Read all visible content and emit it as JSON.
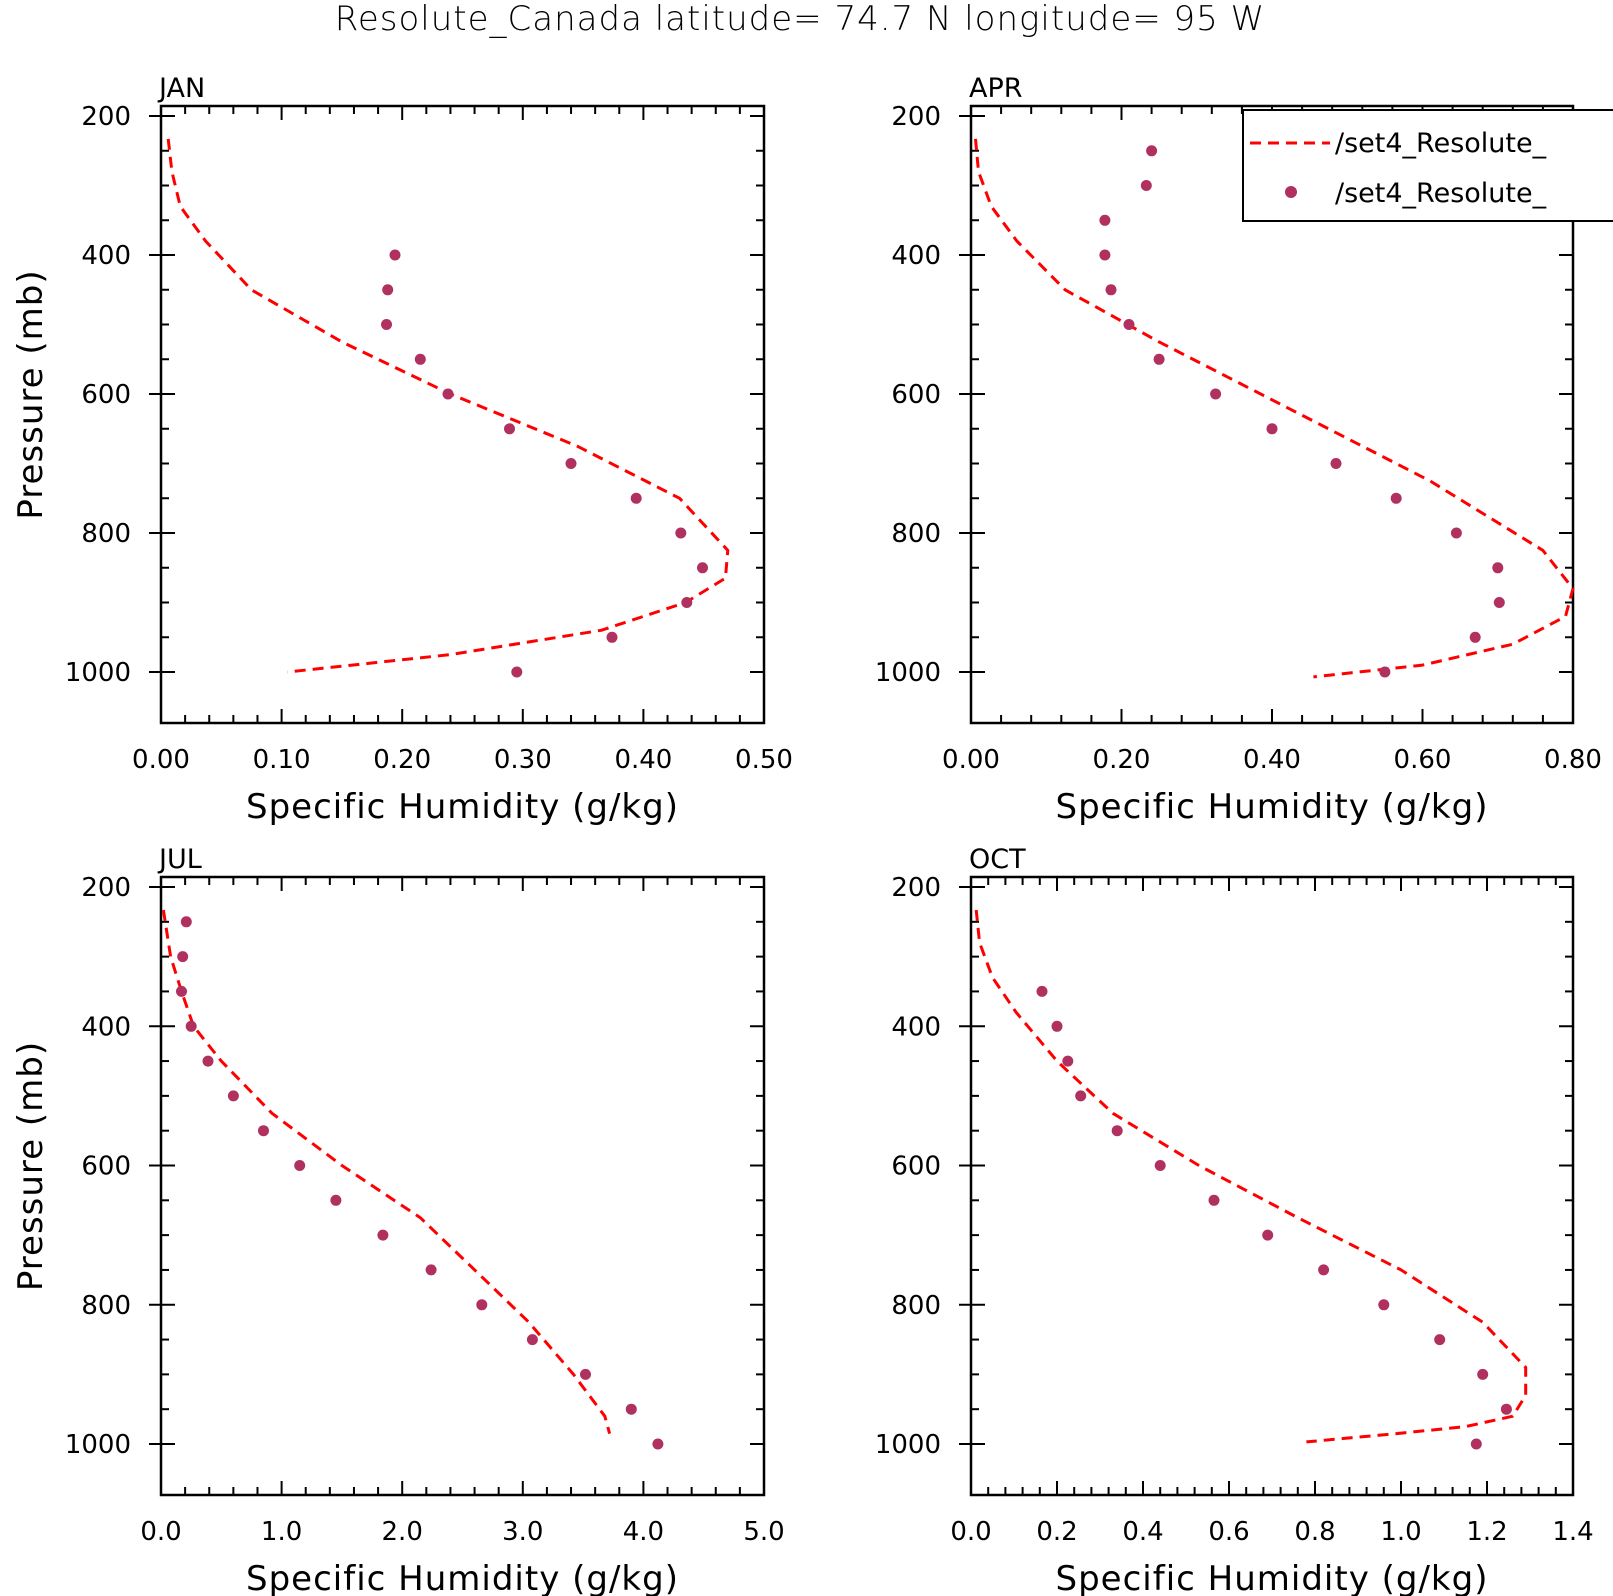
{
  "title": "Resolute_Canada  latitude= 74.7 N longitude= 95 W",
  "legend": {
    "entries": [
      {
        "label": "/set4_Resolute_",
        "style": "dashed-line",
        "color": "#ff0000"
      },
      {
        "label": "/set4_Resolute_",
        "style": "marker",
        "color": "#b03060"
      }
    ]
  },
  "colors": {
    "model_line": "#ff0000",
    "obs_marker": "#b03060"
  },
  "chart_data": [
    {
      "type": "line",
      "panel_label": "JAN",
      "xlabel": "Specific Humidity (g/kg)",
      "ylabel": "Pressure (mb)",
      "xlim": [
        0,
        0.5
      ],
      "ylim": [
        200,
        1000
      ],
      "y_inverted": true,
      "xticks": [
        "0.00",
        "0.10",
        "0.20",
        "0.30",
        "0.40",
        "0.50"
      ],
      "xtick_values": [
        0,
        0.1,
        0.2,
        0.3,
        0.4,
        0.5
      ],
      "yticks": [
        "200",
        "400",
        "600",
        "800",
        "1000"
      ],
      "ytick_values": [
        200,
        400,
        600,
        800,
        1000
      ],
      "series": [
        {
          "style": "dashed-line",
          "x": [
            0.006,
            0.009,
            0.016,
            0.037,
            0.075,
            0.15,
            0.24,
            0.345,
            0.43,
            0.47,
            0.468,
            0.435,
            0.365,
            0.24,
            0.105
          ],
          "y": [
            233,
            280,
            330,
            380,
            450,
            525,
            600,
            675,
            750,
            825,
            865,
            900,
            940,
            975,
            1000
          ]
        },
        {
          "style": "marker",
          "x": [
            0.194,
            0.188,
            0.187,
            0.215,
            0.238,
            0.289,
            0.34,
            0.394,
            0.431,
            0.449,
            0.436,
            0.374,
            0.295
          ],
          "y": [
            400,
            450,
            500,
            550,
            600,
            650,
            700,
            750,
            800,
            850,
            900,
            950,
            1000
          ]
        }
      ]
    },
    {
      "type": "line",
      "panel_label": "APR",
      "xlabel": "Specific Humidity (g/kg)",
      "ylabel": "",
      "xlim": [
        0,
        0.8
      ],
      "ylim": [
        200,
        1000
      ],
      "y_inverted": true,
      "xticks": [
        "0.00",
        "0.20",
        "0.40",
        "0.60",
        "0.80"
      ],
      "xtick_values": [
        0,
        0.2,
        0.4,
        0.6,
        0.8
      ],
      "yticks": [
        "200",
        "400",
        "600",
        "800",
        "1000"
      ],
      "ytick_values": [
        200,
        400,
        600,
        800,
        1000
      ],
      "series": [
        {
          "style": "dashed-line",
          "x": [
            0.006,
            0.01,
            0.027,
            0.061,
            0.125,
            0.25,
            0.43,
            0.61,
            0.76,
            0.8,
            0.79,
            0.72,
            0.6,
            0.455
          ],
          "y": [
            233,
            280,
            330,
            380,
            450,
            525,
            625,
            725,
            825,
            880,
            920,
            960,
            990,
            1007
          ]
        },
        {
          "style": "marker",
          "x": [
            0.24,
            0.233,
            0.178,
            0.178,
            0.186,
            0.21,
            0.25,
            0.325,
            0.4,
            0.485,
            0.565,
            0.645,
            0.7,
            0.702,
            0.67,
            0.55
          ],
          "y": [
            250,
            300,
            350,
            400,
            450,
            500,
            550,
            600,
            650,
            700,
            750,
            800,
            850,
            900,
            950,
            1000
          ]
        }
      ]
    },
    {
      "type": "line",
      "panel_label": "JUL",
      "xlabel": "Specific Humidity (g/kg)",
      "ylabel": "Pressure (mb)",
      "xlim": [
        0,
        5.0
      ],
      "ylim": [
        200,
        1000
      ],
      "y_inverted": true,
      "xticks": [
        "0.0",
        "1.0",
        "2.0",
        "3.0",
        "4.0",
        "5.0"
      ],
      "xtick_values": [
        0,
        1,
        2,
        3,
        4,
        5
      ],
      "yticks": [
        "200",
        "400",
        "600",
        "800",
        "1000"
      ],
      "ytick_values": [
        200,
        400,
        600,
        800,
        1000
      ],
      "series": [
        {
          "style": "dashed-line",
          "x": [
            0.02,
            0.08,
            0.17,
            0.27,
            0.5,
            0.92,
            1.5,
            2.15,
            2.6,
            3.05,
            3.42,
            3.68,
            3.72
          ],
          "y": [
            233,
            300,
            350,
            400,
            450,
            525,
            600,
            675,
            750,
            825,
            900,
            960,
            985
          ]
        },
        {
          "style": "marker",
          "x": [
            0.21,
            0.18,
            0.17,
            0.25,
            0.39,
            0.6,
            0.85,
            1.15,
            1.45,
            1.84,
            2.24,
            2.66,
            3.08,
            3.52,
            3.9,
            4.12
          ],
          "y": [
            250,
            300,
            350,
            400,
            450,
            500,
            550,
            600,
            650,
            700,
            750,
            800,
            850,
            900,
            950,
            1000
          ]
        }
      ]
    },
    {
      "type": "line",
      "panel_label": "OCT",
      "xlabel": "Specific Humidity (g/kg)",
      "ylabel": "",
      "xlim": [
        0,
        1.4
      ],
      "ylim": [
        200,
        1000
      ],
      "y_inverted": true,
      "xticks": [
        "0.0",
        "0.2",
        "0.4",
        "0.6",
        "0.8",
        "1.0",
        "1.2",
        "1.4"
      ],
      "xtick_values": [
        0,
        0.2,
        0.4,
        0.6,
        0.8,
        1.0,
        1.2,
        1.4
      ],
      "yticks": [
        "200",
        "400",
        "600",
        "800",
        "1000"
      ],
      "ytick_values": [
        200,
        400,
        600,
        800,
        1000
      ],
      "series": [
        {
          "style": "dashed-line",
          "x": [
            0.012,
            0.02,
            0.05,
            0.105,
            0.2,
            0.33,
            0.53,
            0.76,
            1.0,
            1.19,
            1.29,
            1.29,
            1.26,
            1.15,
            0.99,
            0.78
          ],
          "y": [
            233,
            280,
            330,
            380,
            450,
            525,
            600,
            675,
            750,
            825,
            890,
            930,
            960,
            975,
            985,
            997
          ]
        },
        {
          "style": "marker",
          "x": [
            0.165,
            0.2,
            0.225,
            0.255,
            0.34,
            0.44,
            0.565,
            0.69,
            0.82,
            0.96,
            1.09,
            1.19,
            1.245,
            1.175
          ],
          "y": [
            350,
            400,
            450,
            500,
            550,
            600,
            650,
            700,
            750,
            800,
            850,
            900,
            950,
            1000
          ]
        }
      ]
    }
  ]
}
